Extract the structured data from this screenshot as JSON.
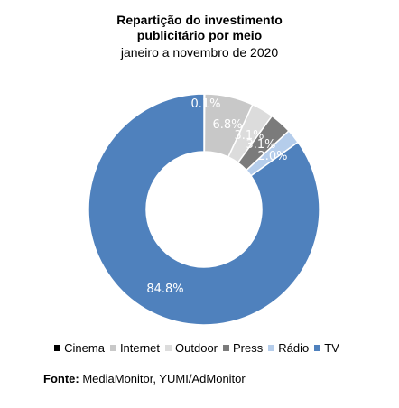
{
  "header": {
    "title_line1": "Repartição do investimento",
    "title_line2": "publicitário por meio",
    "subtitle": "janeiro a novembro de 2020"
  },
  "chart_data": {
    "type": "pie",
    "donut": true,
    "categories": [
      "Cinema",
      "Internet",
      "Outdoor",
      "Press",
      "Rádio",
      "TV"
    ],
    "values": [
      0.1,
      6.8,
      3.1,
      3.1,
      2.0,
      84.8
    ],
    "labels": [
      "0.1%",
      "6.8%",
      "3.1%",
      "3.1%",
      "2.0%",
      "84.8%"
    ],
    "colors": [
      "#000000",
      "#c8c8c8",
      "#dcdcdc",
      "#7b7b7b",
      "#b5cdeb",
      "#4f81bd"
    ],
    "legend_position": "bottom",
    "title": "Repartição do investimento publicitário por meio",
    "subtitle": "janeiro a novembro de 2020"
  },
  "source": {
    "label": "Fonte:",
    "text": "MediaMonitor, YUMI/AdMonitor"
  }
}
